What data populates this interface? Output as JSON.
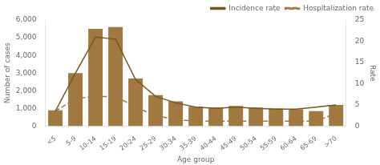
{
  "chart_data": {
    "type": "bar",
    "xlabel": "Age group",
    "ylabel": "Number of cases",
    "y2label": "Rate",
    "categories": [
      "<5",
      "5-9",
      "10-14",
      "15-19",
      "20-24",
      "25-29",
      "30-34",
      "35-39",
      "40-44",
      "45-49",
      "50-54",
      "55-59",
      "60-64",
      "65-69",
      ">70"
    ],
    "series": [
      {
        "type": "bar",
        "color": "#a07840",
        "values": [
          900,
          3000,
          5500,
          5600,
          2700,
          1750,
          1400,
          1100,
          1050,
          1150,
          1050,
          1000,
          950,
          850,
          1200
        ]
      },
      {
        "name": "Incidence rate",
        "type": "line",
        "axis": "y2",
        "color": "#7a5520",
        "line_style": "solid",
        "values": [
          3.5,
          12.5,
          21.0,
          20.5,
          11.0,
          7.0,
          5.5,
          4.5,
          4.2,
          4.5,
          4.2,
          4.0,
          4.0,
          4.5,
          5.0
        ]
      },
      {
        "name": "Hospitalization rate",
        "type": "line",
        "axis": "y2",
        "color": "#a07840",
        "line_style": "dashed",
        "values": [
          3.5,
          6.5,
          7.0,
          7.0,
          4.5,
          2.5,
          1.5,
          1.2,
          1.2,
          1.2,
          1.2,
          1.2,
          1.2,
          1.2,
          3.0
        ]
      }
    ],
    "ylim": [
      0,
      6000
    ],
    "yticks": [
      0,
      {
        "value": 1000,
        "label": "1,000"
      },
      {
        "value": 2000,
        "label": "2,000"
      },
      {
        "value": 3000,
        "label": "3,000"
      },
      {
        "value": 4000,
        "label": "4,000"
      },
      {
        "value": 5000,
        "label": "5,000"
      },
      {
        "value": 6000,
        "label": "6,000"
      }
    ],
    "y2lim": [
      0,
      25
    ],
    "y2ticks": [
      0,
      5,
      10,
      15,
      20,
      25
    ],
    "legend": "upper right",
    "grid": false
  }
}
